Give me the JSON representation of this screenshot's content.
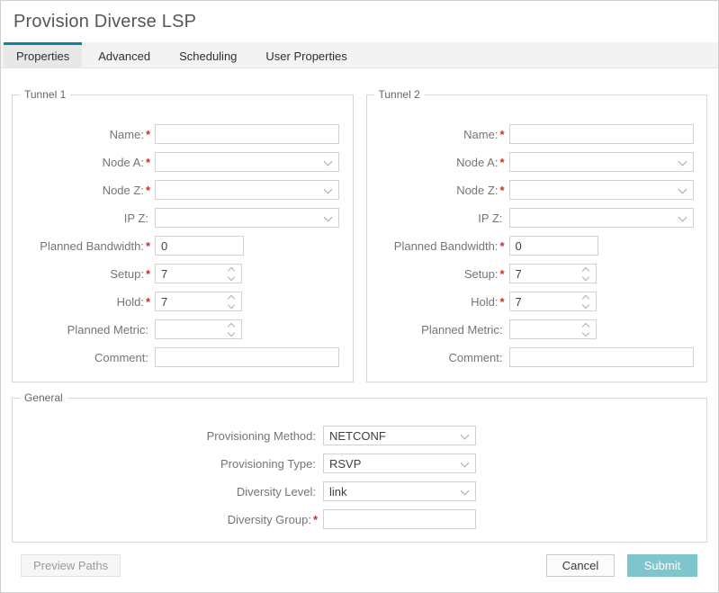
{
  "window": {
    "title": "Provision Diverse LSP"
  },
  "tabs": [
    {
      "label": "Properties",
      "active": true
    },
    {
      "label": "Advanced",
      "active": false
    },
    {
      "label": "Scheduling",
      "active": false
    },
    {
      "label": "User Properties",
      "active": false
    }
  ],
  "tunnel1": {
    "legend": "Tunnel 1",
    "fields": {
      "name": {
        "label": "Name:",
        "required": "*",
        "value": ""
      },
      "node_a": {
        "label": "Node A:",
        "required": "*",
        "value": ""
      },
      "node_z": {
        "label": "Node Z:",
        "required": "*",
        "value": ""
      },
      "ip_z": {
        "label": "IP Z:",
        "value": ""
      },
      "planned_bandwidth": {
        "label": "Planned Bandwidth:",
        "required": "*",
        "value": "0"
      },
      "setup": {
        "label": "Setup:",
        "required": "*",
        "value": "7"
      },
      "hold": {
        "label": "Hold:",
        "required": "*",
        "value": "7"
      },
      "planned_metric": {
        "label": "Planned Metric:",
        "value": ""
      },
      "comment": {
        "label": "Comment:",
        "value": ""
      }
    }
  },
  "tunnel2": {
    "legend": "Tunnel 2",
    "fields": {
      "name": {
        "label": "Name:",
        "required": "*",
        "value": ""
      },
      "node_a": {
        "label": "Node A:",
        "required": "*",
        "value": ""
      },
      "node_z": {
        "label": "Node Z:",
        "required": "*",
        "value": ""
      },
      "ip_z": {
        "label": "IP Z:",
        "value": ""
      },
      "planned_bandwidth": {
        "label": "Planned Bandwidth:",
        "required": "*",
        "value": "0"
      },
      "setup": {
        "label": "Setup:",
        "required": "*",
        "value": "7"
      },
      "hold": {
        "label": "Hold:",
        "required": "*",
        "value": "7"
      },
      "planned_metric": {
        "label": "Planned Metric:",
        "value": ""
      },
      "comment": {
        "label": "Comment:",
        "value": ""
      }
    }
  },
  "general": {
    "legend": "General",
    "fields": {
      "provisioning_method": {
        "label": "Provisioning Method:",
        "value": "NETCONF"
      },
      "provisioning_type": {
        "label": "Provisioning Type:",
        "value": "RSVP"
      },
      "diversity_level": {
        "label": "Diversity Level:",
        "value": "link"
      },
      "diversity_group": {
        "label": "Diversity Group:",
        "required": "*",
        "value": ""
      }
    }
  },
  "footer": {
    "preview_paths": "Preview Paths",
    "cancel": "Cancel",
    "submit": "Submit"
  },
  "colors": {
    "accent_teal": "#0a8696",
    "active_tab_bg": "#e8e8e8",
    "submit_bg": "#7ec5ce",
    "required_red": "#cf2a27"
  }
}
